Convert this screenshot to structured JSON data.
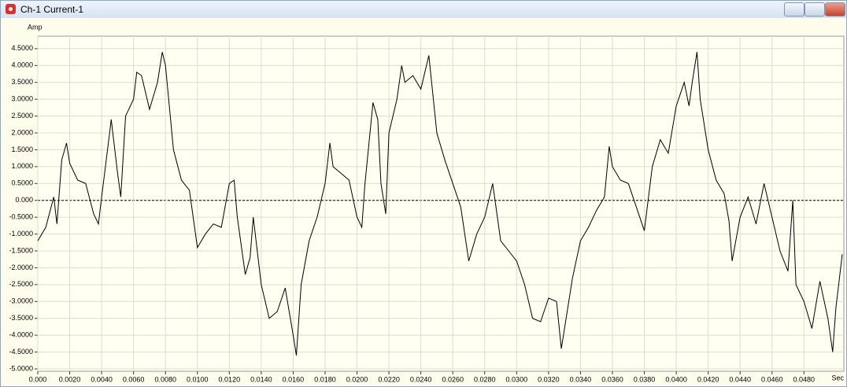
{
  "window": {
    "title": "Ch-1 Current-1"
  },
  "chart_data": {
    "type": "line",
    "y_label": "Amp",
    "x_label": "Sec",
    "color": "#000000",
    "grid": true,
    "zero_line": true,
    "xlim": [
      0,
      0.0505
    ],
    "ylim": [
      -5.07,
      4.87
    ],
    "xticks": [
      {
        "value": 0,
        "label": "0.000"
      },
      {
        "value": 0.002,
        "label": "0.0020"
      },
      {
        "value": 0.004,
        "label": "0.0040"
      },
      {
        "value": 0.006,
        "label": "0.0060"
      },
      {
        "value": 0.008,
        "label": "0.0080"
      },
      {
        "value": 0.01,
        "label": "0.0100"
      },
      {
        "value": 0.012,
        "label": "0.0120"
      },
      {
        "value": 0.014,
        "label": "0.0140"
      },
      {
        "value": 0.016,
        "label": "0.0160"
      },
      {
        "value": 0.018,
        "label": "0.0180"
      },
      {
        "value": 0.02,
        "label": "0.0200"
      },
      {
        "value": 0.022,
        "label": "0.0220"
      },
      {
        "value": 0.024,
        "label": "0.0240"
      },
      {
        "value": 0.026,
        "label": "0.0260"
      },
      {
        "value": 0.028,
        "label": "0.0280"
      },
      {
        "value": 0.03,
        "label": "0.0300"
      },
      {
        "value": 0.032,
        "label": "0.0320"
      },
      {
        "value": 0.034,
        "label": "0.0340"
      },
      {
        "value": 0.036,
        "label": "0.0360"
      },
      {
        "value": 0.038,
        "label": "0.0380"
      },
      {
        "value": 0.04,
        "label": "0.0400"
      },
      {
        "value": 0.042,
        "label": "0.0420"
      },
      {
        "value": 0.044,
        "label": "0.0440"
      },
      {
        "value": 0.046,
        "label": "0.0460"
      },
      {
        "value": 0.048,
        "label": "0.0480"
      }
    ],
    "yticks": [
      {
        "value": -5,
        "label": "-5.0000"
      },
      {
        "value": -4.5,
        "label": "-4.5000"
      },
      {
        "value": -4,
        "label": "-4.0000"
      },
      {
        "value": -3.5,
        "label": "-3.5000"
      },
      {
        "value": -3,
        "label": "-3.0000"
      },
      {
        "value": -2.5,
        "label": "-2.5000"
      },
      {
        "value": -2,
        "label": "-2.0000"
      },
      {
        "value": -1.5,
        "label": "-1.5000"
      },
      {
        "value": -1,
        "label": "-1.0000"
      },
      {
        "value": -0.5,
        "label": "-0.5000"
      },
      {
        "value": 0,
        "label": "0.000"
      },
      {
        "value": 0.5,
        "label": "0.5000"
      },
      {
        "value": 1,
        "label": "1.0000"
      },
      {
        "value": 1.5,
        "label": "1.5000"
      },
      {
        "value": 2,
        "label": "2.0000"
      },
      {
        "value": 2.5,
        "label": "2.5000"
      },
      {
        "value": 3,
        "label": "3.0000"
      },
      {
        "value": 3.5,
        "label": "3.5000"
      },
      {
        "value": 4,
        "label": "4.0000"
      },
      {
        "value": 4.5,
        "label": "4.5000"
      }
    ],
    "x": [
      0,
      0.0005,
      0.001,
      0.0012,
      0.0015,
      0.0018,
      0.002,
      0.0025,
      0.003,
      0.0035,
      0.0038,
      0.004,
      0.0045,
      0.0046,
      0.005,
      0.0052,
      0.0055,
      0.006,
      0.0062,
      0.0065,
      0.007,
      0.0075,
      0.0078,
      0.008,
      0.0085,
      0.009,
      0.0095,
      0.01,
      0.0105,
      0.011,
      0.0115,
      0.012,
      0.0123,
      0.0125,
      0.013,
      0.0133,
      0.0135,
      0.014,
      0.0145,
      0.015,
      0.0155,
      0.016,
      0.0162,
      0.0165,
      0.017,
      0.0175,
      0.018,
      0.0183,
      0.0185,
      0.019,
      0.0195,
      0.02,
      0.0203,
      0.0205,
      0.021,
      0.0213,
      0.0215,
      0.0218,
      0.022,
      0.0225,
      0.0228,
      0.023,
      0.0235,
      0.024,
      0.0245,
      0.025,
      0.0255,
      0.026,
      0.0265,
      0.027,
      0.0275,
      0.028,
      0.0285,
      0.029,
      0.0295,
      0.03,
      0.0305,
      0.031,
      0.0315,
      0.032,
      0.0325,
      0.0328,
      0.033,
      0.0335,
      0.034,
      0.0345,
      0.035,
      0.0355,
      0.0358,
      0.036,
      0.0365,
      0.037,
      0.0375,
      0.038,
      0.0385,
      0.039,
      0.0395,
      0.04,
      0.0405,
      0.0408,
      0.041,
      0.0413,
      0.0415,
      0.042,
      0.0425,
      0.043,
      0.0433,
      0.0435,
      0.044,
      0.0445,
      0.045,
      0.0455,
      0.046,
      0.0465,
      0.047,
      0.0473,
      0.0475,
      0.048,
      0.0485,
      0.049,
      0.0495,
      0.0498,
      0.05,
      0.0504
    ],
    "values": [
      -1.2,
      -0.8,
      0.1,
      -0.7,
      1.2,
      1.7,
      1.1,
      0.6,
      0.5,
      -0.4,
      -0.7,
      0.1,
      2.0,
      2.4,
      0.8,
      0.1,
      2.5,
      3.0,
      3.8,
      3.7,
      2.7,
      3.5,
      4.4,
      4.0,
      1.5,
      0.6,
      0.3,
      -1.4,
      -1.0,
      -0.7,
      -0.8,
      0.5,
      0.6,
      -0.5,
      -2.2,
      -1.7,
      -0.5,
      -2.5,
      -3.5,
      -3.3,
      -2.6,
      -4.0,
      -4.6,
      -2.5,
      -1.2,
      -0.5,
      0.5,
      1.7,
      1.0,
      0.8,
      0.6,
      -0.5,
      -0.8,
      0.5,
      2.9,
      2.4,
      0.5,
      -0.4,
      2.0,
      3.0,
      4.0,
      3.5,
      3.7,
      3.3,
      4.3,
      2.0,
      1.2,
      0.5,
      -0.2,
      -1.8,
      -1.0,
      -0.5,
      0.5,
      -1.2,
      -1.5,
      -1.8,
      -2.5,
      -3.5,
      -3.6,
      -2.9,
      -3.0,
      -4.4,
      -3.8,
      -2.3,
      -1.2,
      -0.8,
      -0.3,
      0.1,
      1.6,
      1.0,
      0.6,
      0.5,
      -0.2,
      -0.9,
      1.0,
      1.8,
      1.4,
      2.8,
      3.5,
      2.8,
      3.5,
      4.4,
      3.0,
      1.5,
      0.6,
      0.2,
      -0.6,
      -1.8,
      -0.5,
      0.1,
      -0.7,
      0.5,
      -0.5,
      -1.5,
      -2.1,
      0.0,
      -2.5,
      -3.0,
      -3.8,
      -2.4,
      -3.5,
      -4.5,
      -3.2,
      -1.6
    ]
  }
}
